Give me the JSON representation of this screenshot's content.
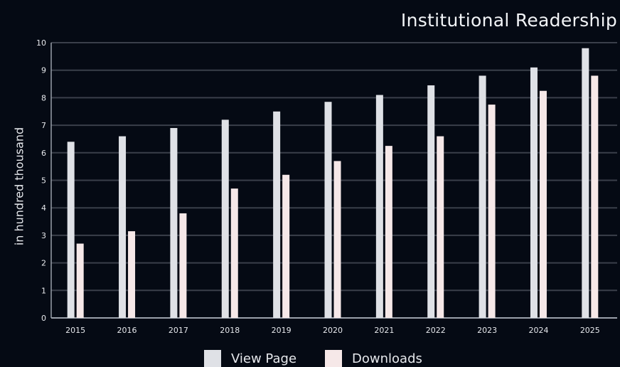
{
  "chart_data": {
    "type": "bar",
    "title": "Institutional Readership",
    "xlabel": "",
    "ylabel": "in hundred thousand",
    "ylim": [
      0,
      10
    ],
    "yticks": [
      0,
      1,
      2,
      3,
      4,
      5,
      6,
      7,
      8,
      9,
      10
    ],
    "grid": true,
    "legend_position": "bottom",
    "categories": [
      "2015",
      "2016",
      "2017",
      "2018",
      "2019",
      "2020",
      "2021",
      "2022",
      "2023",
      "2024",
      "2025"
    ],
    "series": [
      {
        "name": "View Page",
        "color": "#dfe1e6",
        "values": [
          6.4,
          6.6,
          6.9,
          7.2,
          7.5,
          7.85,
          8.1,
          8.45,
          8.8,
          9.1,
          9.8
        ]
      },
      {
        "name": "Downloads",
        "color": "#f6e8e8",
        "values": [
          2.7,
          3.15,
          3.8,
          4.7,
          5.2,
          5.7,
          6.25,
          6.6,
          7.75,
          8.25,
          8.8
        ]
      }
    ]
  }
}
